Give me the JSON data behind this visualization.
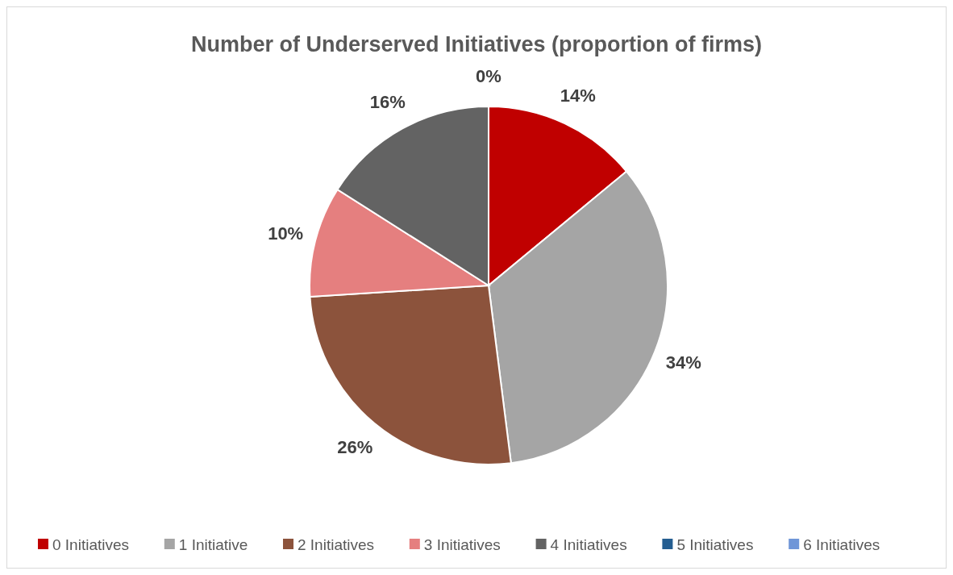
{
  "chart_data": {
    "type": "pie",
    "title": "Number of Underserved Initiatives (proportion of firms)",
    "categories": [
      "0 Initiatives",
      "1 Initiative",
      "2 Initiatives",
      "3 Initiatives",
      "4 Initiatives",
      "5 Initiatives",
      "6 Initiatives"
    ],
    "values": [
      14,
      34,
      26,
      10,
      16,
      0,
      0
    ],
    "colors": [
      "#c00000",
      "#a5a5a5",
      "#8c533c",
      "#e57f7f",
      "#636363",
      "#255e91",
      "#6f96d8"
    ],
    "value_labels": [
      "14%",
      "34%",
      "26%",
      "10%",
      "16%",
      "0%",
      null
    ],
    "legend": "bottom"
  }
}
